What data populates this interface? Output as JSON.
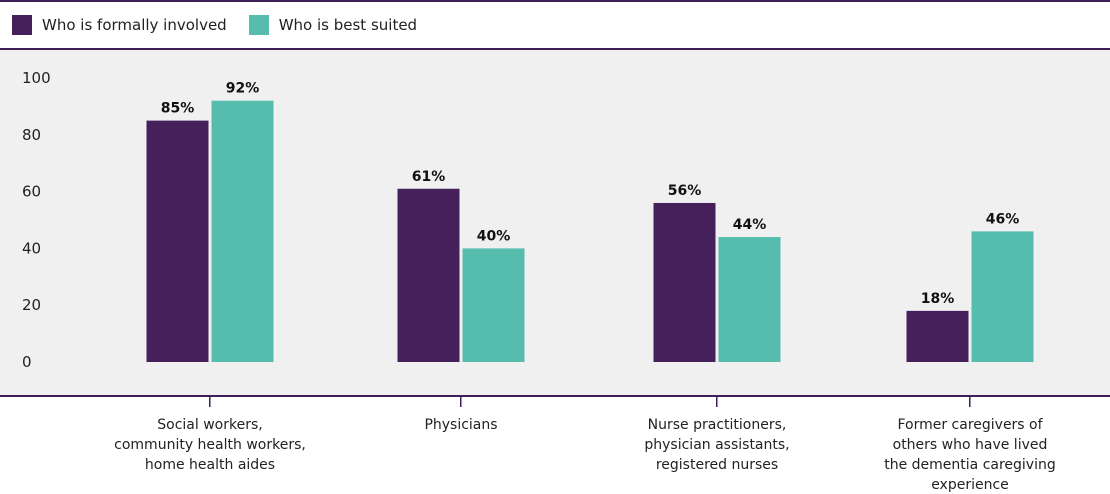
{
  "colors": {
    "series_1": "#46205a",
    "series_2": "#56bcae",
    "frame": "#3f1f5a",
    "panel": "#f0f0f0"
  },
  "legend": {
    "items": [
      {
        "label": "Who is formally involved",
        "color": "#46205a"
      },
      {
        "label": "Who is best suited",
        "color": "#56bcae"
      }
    ]
  },
  "chart_data": {
    "type": "bar",
    "title": "",
    "xlabel": "",
    "ylabel": "",
    "ylim": [
      0,
      100
    ],
    "yticks": [
      0,
      20,
      40,
      60,
      80,
      100
    ],
    "grid": false,
    "legend_position": "top-left",
    "categories": [
      [
        "Social workers,",
        "community health workers,",
        "home health aides"
      ],
      [
        "Physicians"
      ],
      [
        "Nurse practitioners,",
        "physician assistants,",
        "registered nurses"
      ],
      [
        "Former caregivers of",
        "others who have lived",
        "the dementia caregiving",
        "experience"
      ]
    ],
    "series": [
      {
        "name": "Who is formally involved",
        "values": [
          85,
          61,
          56,
          18
        ],
        "labels": [
          "85%",
          "61%",
          "56%",
          "18%"
        ]
      },
      {
        "name": "Who is best suited",
        "values": [
          92,
          40,
          44,
          46
        ],
        "labels": [
          "92%",
          "40%",
          "44%",
          "46%"
        ]
      }
    ]
  }
}
